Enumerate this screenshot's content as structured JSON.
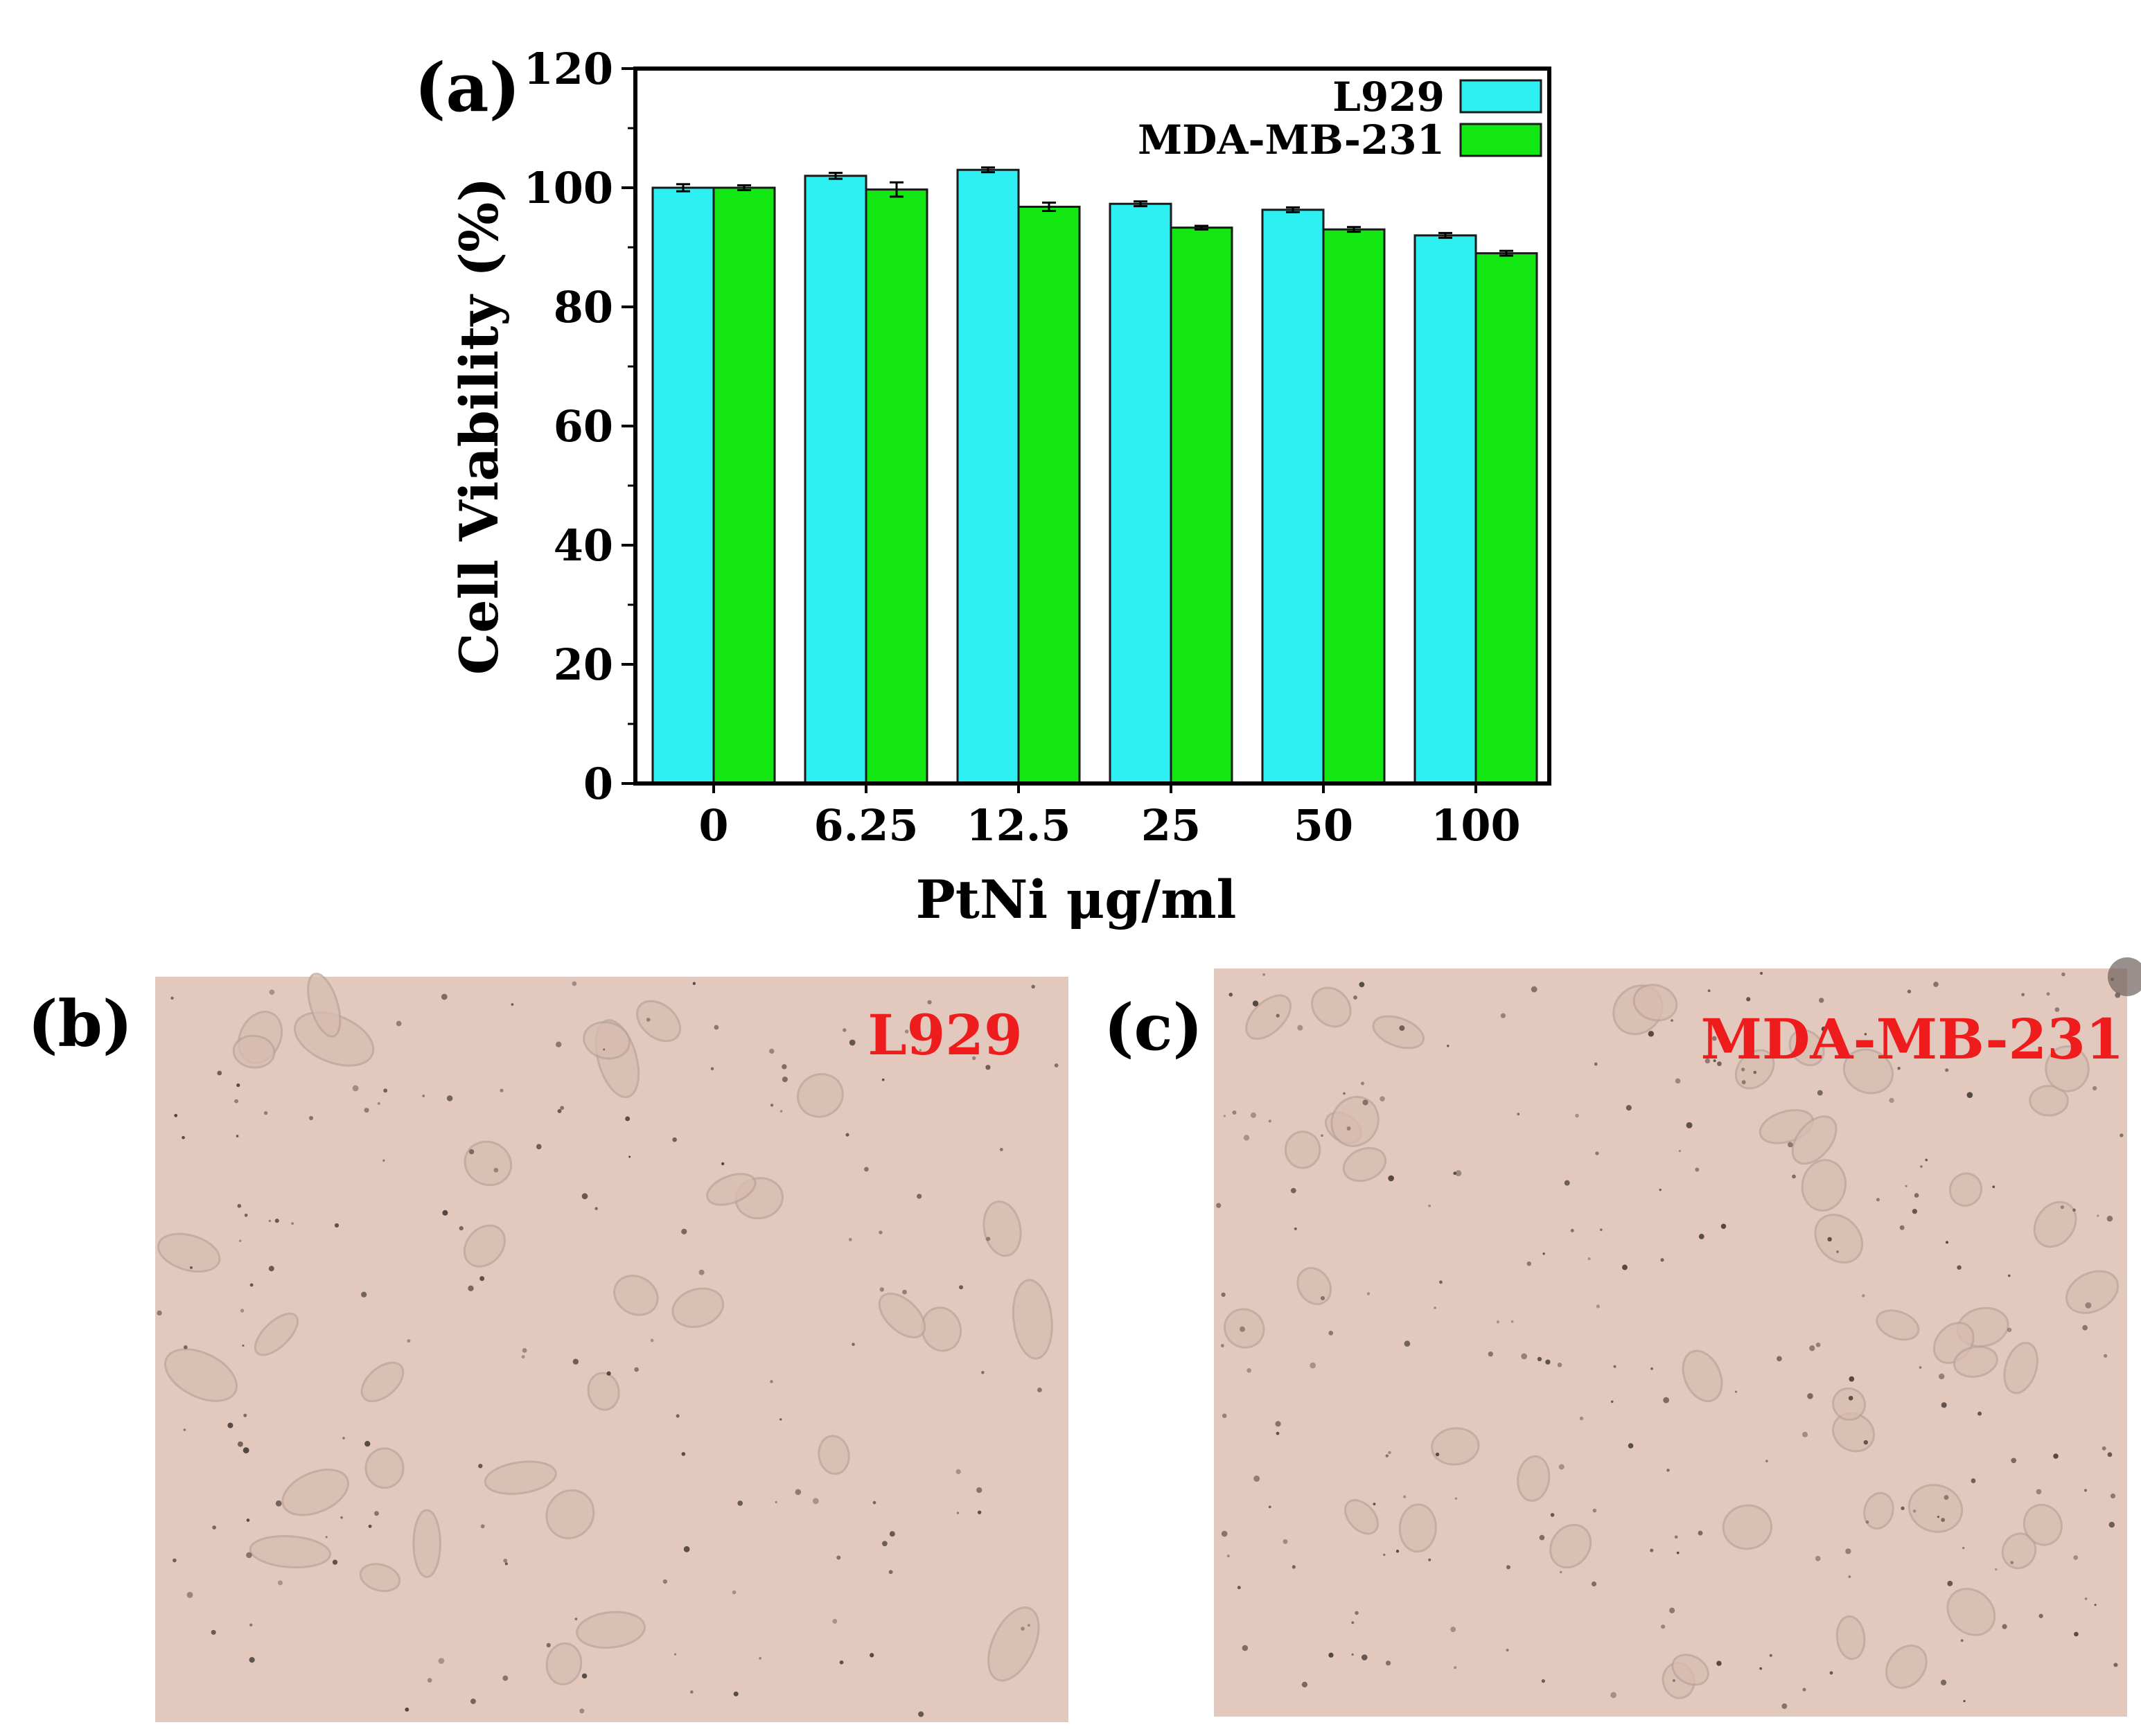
{
  "panels": {
    "a": {
      "label": "(a)"
    },
    "b": {
      "label": "(b)",
      "cell_line": "L929"
    },
    "c": {
      "label": "(c)",
      "cell_line": "MDA-MB-231"
    }
  },
  "colors": {
    "l929": "#2ef0f2",
    "mda": "#13e813",
    "micro_bg": "#e3c9bd",
    "cell_label": "#ee1c1c",
    "dark_particle": "#3a2f2d"
  },
  "chart_data": {
    "type": "bar",
    "xlabel": "PtNi μg/ml",
    "ylabel": "Cell Viability (%)",
    "ylim": [
      0,
      120
    ],
    "yticks": [
      0,
      20,
      40,
      60,
      80,
      100,
      120
    ],
    "categories": [
      "0",
      "6.25",
      "12.5",
      "25",
      "50",
      "100"
    ],
    "series": [
      {
        "name": "L929",
        "color": "#2ef0f2",
        "values": [
          100,
          102,
          103,
          97.3,
          96.3,
          92
        ],
        "errors": [
          0.6,
          0.5,
          0.4,
          0.4,
          0.4,
          0.4
        ]
      },
      {
        "name": "MDA-MB-231",
        "color": "#13e813",
        "values": [
          100,
          99.7,
          96.8,
          93.3,
          93,
          89
        ],
        "errors": [
          0.4,
          1.2,
          0.7,
          0.3,
          0.4,
          0.4
        ]
      }
    ],
    "legend_position": "top-right",
    "grid": false
  }
}
